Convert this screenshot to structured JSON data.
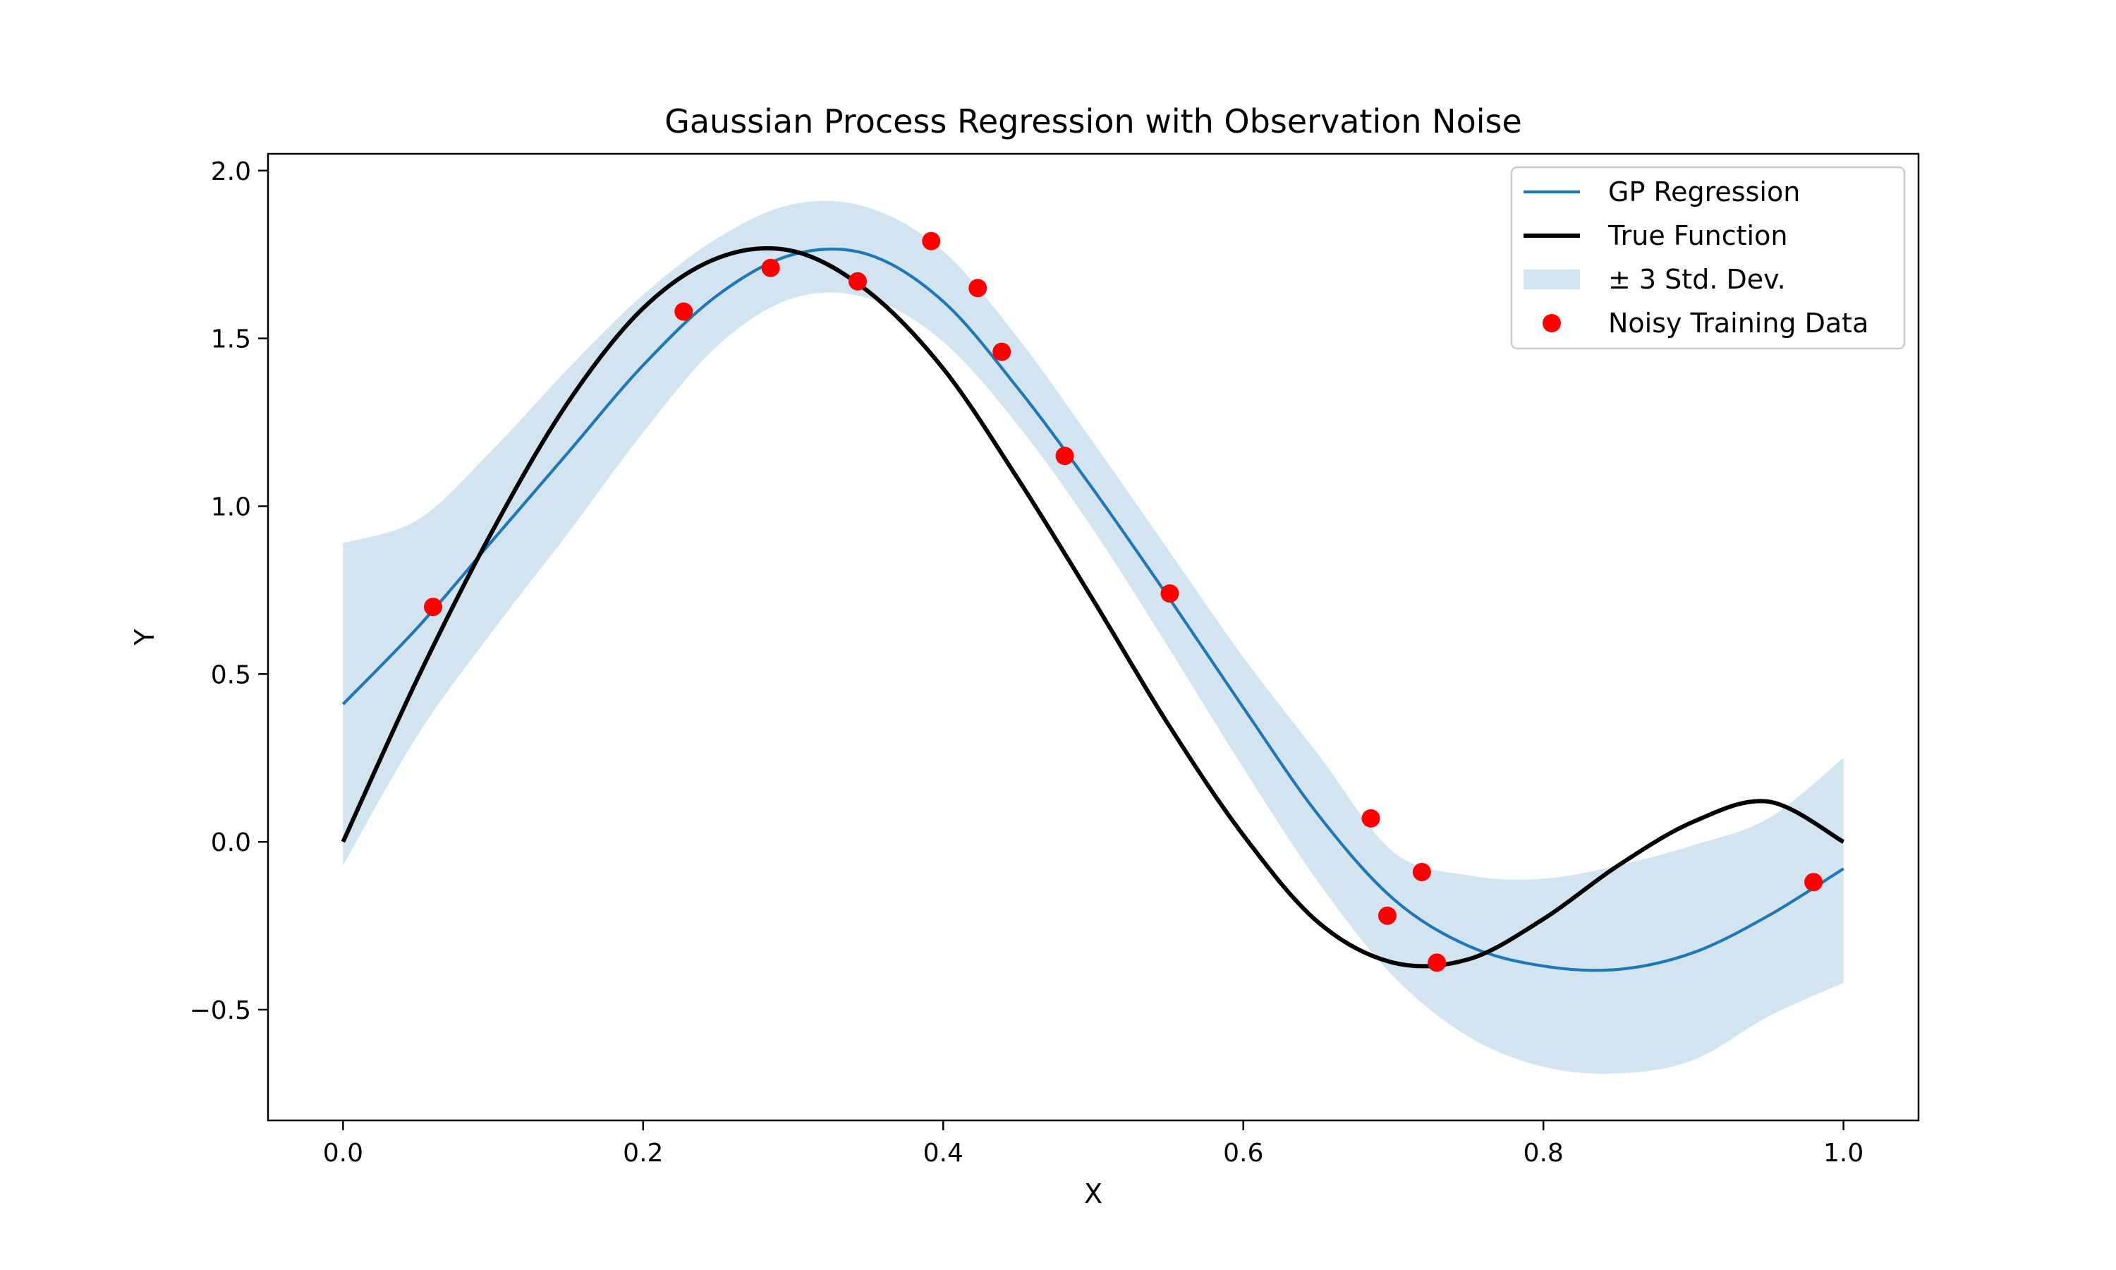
{
  "chart_data": {
    "type": "line",
    "title": "Gaussian Process Regression with Observation Noise",
    "xlabel": "X",
    "ylabel": "Y",
    "xlim": [
      -0.05,
      1.05
    ],
    "ylim": [
      -0.83,
      2.05
    ],
    "grid": false,
    "legend_position": "top-right",
    "x_ticks": [
      0.0,
      0.2,
      0.4,
      0.6,
      0.8,
      1.0
    ],
    "x_tick_labels": [
      "0.0",
      "0.2",
      "0.4",
      "0.6",
      "0.8",
      "1.0"
    ],
    "y_ticks": [
      -0.5,
      0.0,
      0.5,
      1.0,
      1.5,
      2.0
    ],
    "y_tick_labels": [
      "−0.5",
      "0.0",
      "0.5",
      "1.0",
      "1.5",
      "2.0"
    ],
    "x": [
      0.0,
      0.05,
      0.1,
      0.15,
      0.2,
      0.25,
      0.3,
      0.35,
      0.4,
      0.45,
      0.5,
      0.55,
      0.6,
      0.65,
      0.7,
      0.75,
      0.8,
      0.85,
      0.9,
      0.95,
      1.0
    ],
    "series": [
      {
        "name": "GP Regression",
        "role": "line",
        "color": "#1f77b4",
        "values": [
          0.41,
          0.64,
          0.9,
          1.16,
          1.42,
          1.63,
          1.75,
          1.75,
          1.61,
          1.35,
          1.05,
          0.73,
          0.4,
          0.08,
          -0.17,
          -0.31,
          -0.37,
          -0.38,
          -0.33,
          -0.22,
          -0.08
        ]
      },
      {
        "name": "True Function",
        "role": "line",
        "color": "#000000",
        "values": [
          0.0,
          0.49,
          0.93,
          1.31,
          1.59,
          1.74,
          1.76,
          1.64,
          1.41,
          1.08,
          0.72,
          0.35,
          0.02,
          -0.24,
          -0.36,
          -0.35,
          -0.23,
          -0.07,
          0.06,
          0.12,
          0.0
        ]
      },
      {
        "name": "± 3 Std. Dev.",
        "role": "band",
        "color": "#1f77b4",
        "opacity": 0.2,
        "lower": [
          -0.07,
          0.32,
          0.63,
          0.92,
          1.22,
          1.48,
          1.62,
          1.62,
          1.49,
          1.24,
          0.93,
          0.58,
          0.22,
          -0.12,
          -0.4,
          -0.58,
          -0.67,
          -0.69,
          -0.65,
          -0.52,
          -0.42
        ],
        "upper": [
          0.89,
          0.96,
          1.17,
          1.41,
          1.63,
          1.8,
          1.9,
          1.89,
          1.76,
          1.5,
          1.19,
          0.87,
          0.55,
          0.26,
          -0.03,
          -0.1,
          -0.11,
          -0.07,
          -0.01,
          0.07,
          0.25
        ]
      },
      {
        "name": "Noisy Training Data",
        "role": "scatter",
        "color": "#ff0000",
        "points": [
          {
            "x": 0.06,
            "y": 0.7
          },
          {
            "x": 0.227,
            "y": 1.58
          },
          {
            "x": 0.285,
            "y": 1.71
          },
          {
            "x": 0.343,
            "y": 1.67
          },
          {
            "x": 0.392,
            "y": 1.79
          },
          {
            "x": 0.423,
            "y": 1.65
          },
          {
            "x": 0.439,
            "y": 1.46
          },
          {
            "x": 0.481,
            "y": 1.15
          },
          {
            "x": 0.551,
            "y": 0.74
          },
          {
            "x": 0.685,
            "y": 0.07
          },
          {
            "x": 0.696,
            "y": -0.22
          },
          {
            "x": 0.719,
            "y": -0.09
          },
          {
            "x": 0.729,
            "y": -0.36
          },
          {
            "x": 0.98,
            "y": -0.12
          }
        ]
      }
    ]
  }
}
